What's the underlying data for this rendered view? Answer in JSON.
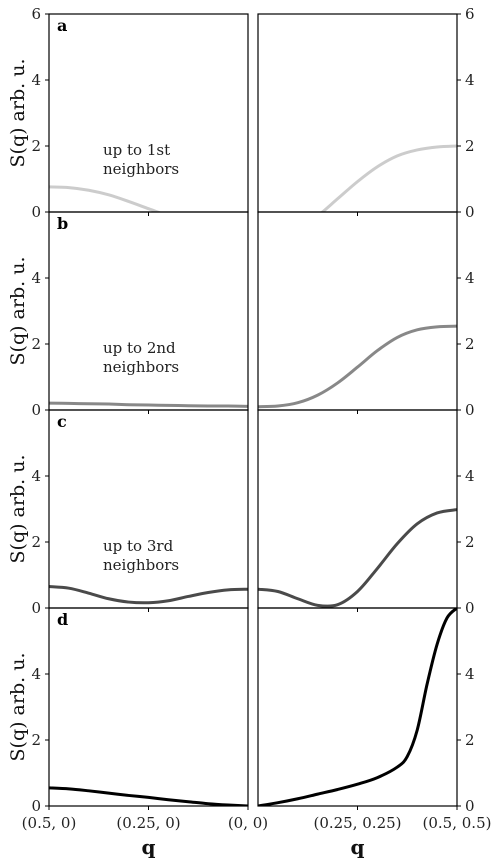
{
  "chart_data": {
    "type": "line",
    "y_axis_label": "S(q) arb. u.",
    "x_axis_label": "q",
    "ylim": [
      0,
      6
    ],
    "yticks": [
      0,
      2,
      4,
      6
    ],
    "yticks_inner": [
      0,
      2,
      4
    ],
    "left_xticks": [
      "(0.5, 0)",
      "(0.25, 0)",
      "(0, 0)"
    ],
    "right_xticks": [
      "(0.25, 0.25)",
      "(0.5, 0.5)"
    ],
    "panels": [
      {
        "letter": "a",
        "annotation": [
          "up to 1st",
          "neighbors"
        ],
        "color": "#cccccc",
        "left": {
          "x": [
            0,
            0.1,
            0.2,
            0.3,
            0.4,
            0.5,
            0.6,
            0.7,
            0.8,
            0.9,
            1.0
          ],
          "y": [
            0.76,
            0.74,
            0.66,
            0.52,
            0.32,
            0.1,
            -0.12,
            -0.36,
            -0.6,
            -0.8,
            -0.95
          ]
        },
        "right": {
          "x": [
            0,
            0.1,
            0.2,
            0.3,
            0.4,
            0.5,
            0.6,
            0.7,
            0.8,
            0.9,
            1.0
          ],
          "y": [
            -1.1,
            -0.9,
            -0.55,
            -0.12,
            0.4,
            0.92,
            1.37,
            1.7,
            1.88,
            1.97,
            2.0
          ]
        }
      },
      {
        "letter": "b",
        "annotation": [
          "up to 2nd",
          "neighbors"
        ],
        "color": "#888888",
        "left": {
          "x": [
            0,
            0.1,
            0.2,
            0.3,
            0.4,
            0.5,
            0.6,
            0.7,
            0.8,
            0.9,
            1.0
          ],
          "y": [
            0.21,
            0.2,
            0.19,
            0.18,
            0.16,
            0.15,
            0.14,
            0.13,
            0.12,
            0.12,
            0.11
          ]
        },
        "right": {
          "x": [
            0,
            0.1,
            0.2,
            0.3,
            0.4,
            0.5,
            0.6,
            0.7,
            0.8,
            0.9,
            1.0
          ],
          "y": [
            0.1,
            0.12,
            0.22,
            0.45,
            0.82,
            1.3,
            1.8,
            2.2,
            2.43,
            2.52,
            2.54
          ]
        }
      },
      {
        "letter": "c",
        "annotation": [
          "up to 3rd",
          "neighbors"
        ],
        "color": "#4a4a4a",
        "left": {
          "x": [
            0,
            0.1,
            0.2,
            0.3,
            0.4,
            0.5,
            0.6,
            0.7,
            0.8,
            0.9,
            1.0
          ],
          "y": [
            0.65,
            0.6,
            0.45,
            0.28,
            0.18,
            0.16,
            0.22,
            0.35,
            0.47,
            0.55,
            0.57
          ]
        },
        "right": {
          "x": [
            0,
            0.1,
            0.2,
            0.3,
            0.4,
            0.5,
            0.6,
            0.7,
            0.8,
            0.9,
            1.0
          ],
          "y": [
            0.57,
            0.5,
            0.28,
            0.08,
            0.1,
            0.5,
            1.2,
            1.95,
            2.55,
            2.88,
            2.98
          ]
        }
      },
      {
        "letter": "d",
        "color": "#000000",
        "left": {
          "x": [
            0,
            0.1,
            0.2,
            0.3,
            0.4,
            0.5,
            0.6,
            0.7,
            0.8,
            0.9,
            1.0
          ],
          "y": [
            0.55,
            0.52,
            0.46,
            0.39,
            0.32,
            0.26,
            0.19,
            0.13,
            0.07,
            0.03,
            0.0
          ]
        },
        "right": {
          "x": [
            0,
            0.1,
            0.2,
            0.3,
            0.4,
            0.5,
            0.6,
            0.7,
            0.75,
            0.8,
            0.85,
            0.9,
            0.95,
            1.0
          ],
          "y": [
            0.0,
            0.1,
            0.22,
            0.36,
            0.5,
            0.66,
            0.86,
            1.18,
            1.5,
            2.3,
            3.7,
            4.9,
            5.7,
            6.0
          ]
        }
      }
    ]
  }
}
